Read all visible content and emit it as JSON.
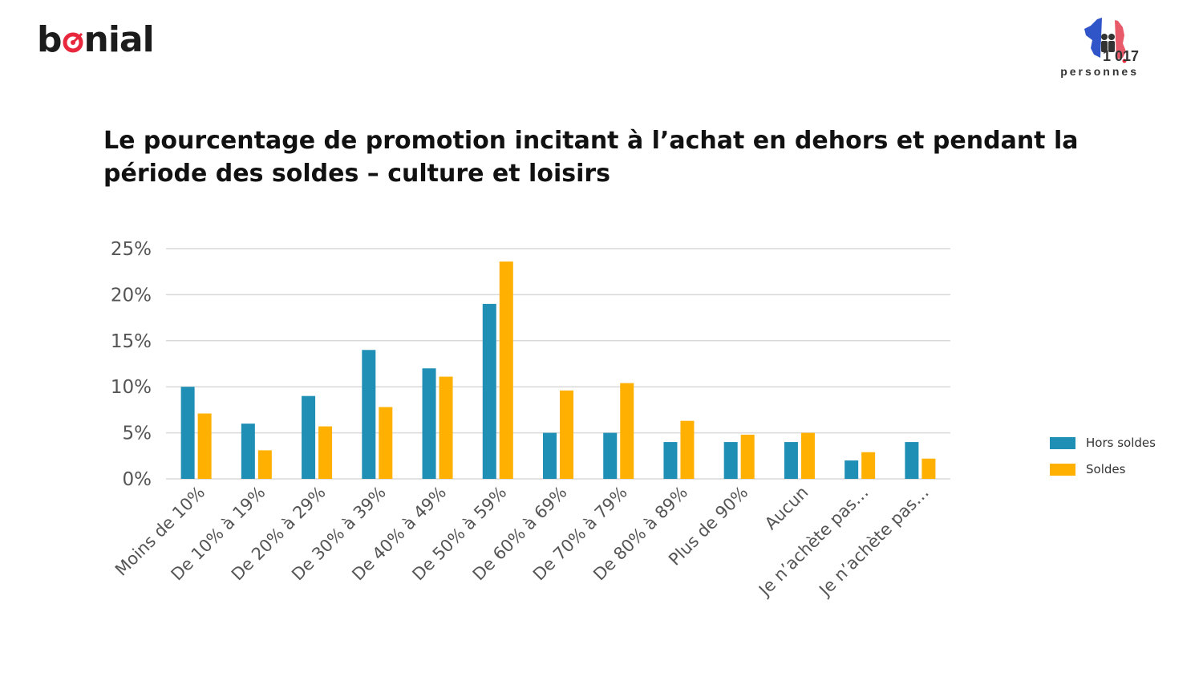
{
  "brand": {
    "logo_text_before": "b",
    "logo_text_after": "nial"
  },
  "badge": {
    "count": "1 017",
    "label": "personnes"
  },
  "colors": {
    "hors_soldes": "#1f8fb5",
    "soldes": "#ffb000",
    "grid": "#d9d9d9",
    "logo_red": "#e8283c"
  },
  "chart_data": {
    "type": "bar",
    "title": "Le pourcentage de promotion incitant à l’achat en dehors et pendant la période des soldes – culture et loisirs",
    "categories": [
      "Moins de 10%",
      "De 10% à 19%",
      "De 20% à 29%",
      "De 30% à 39%",
      "De 40% à 49%",
      "De 50% à 59%",
      "De 60% à 69%",
      "De 70% à 79%",
      "De 80% à 89%",
      "Plus de 90%",
      "Aucun",
      "Je n’achète pas…",
      "Je n’achète pas…"
    ],
    "series": [
      {
        "name": "Hors soldes",
        "values": [
          10,
          6,
          9,
          14,
          12,
          19,
          5,
          5,
          4,
          4,
          4,
          2,
          4
        ]
      },
      {
        "name": "Soldes",
        "values": [
          7.1,
          3.1,
          5.7,
          7.8,
          11.1,
          23.6,
          9.6,
          10.4,
          6.3,
          4.8,
          5.0,
          2.9,
          2.2
        ]
      }
    ],
    "yticks": [
      "0%",
      "5%",
      "10%",
      "15%",
      "20%",
      "25%"
    ],
    "ylim": [
      0,
      25
    ],
    "grid": true,
    "legend_position": "right"
  }
}
